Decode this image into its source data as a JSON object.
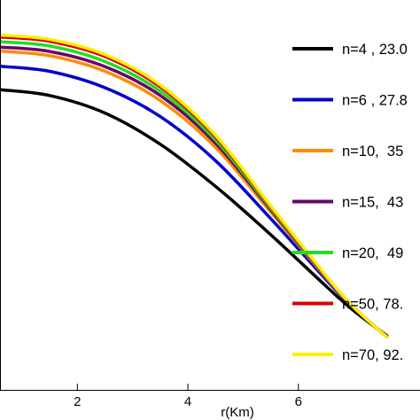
{
  "chart_data": {
    "type": "line",
    "title": "",
    "xlabel": "r(Km)",
    "ylabel": "",
    "xlim": [
      0.6,
      8.2
    ],
    "ylim": [
      0,
      1
    ],
    "grid": false,
    "legend_position": "right",
    "x_ticks": [
      {
        "value": 2,
        "label": "2"
      },
      {
        "value": 4,
        "label": "4"
      },
      {
        "value": 6,
        "label": "6"
      }
    ],
    "series": [
      {
        "name": "n=4 , 23.0",
        "color": "#000000",
        "x": [
          0.6,
          1.5,
          2.5,
          3.5,
          4.5,
          5.5,
          6.5,
          7.0,
          7.6
        ],
        "y": [
          0.77,
          0.755,
          0.71,
          0.63,
          0.522,
          0.398,
          0.266,
          0.203,
          0.139
        ]
      },
      {
        "name": "n=6 , 27.8",
        "color": "#0000cc",
        "x": [
          0.6,
          1.5,
          2.5,
          3.5,
          4.5,
          5.5,
          6.5,
          7.0,
          7.6
        ],
        "y": [
          0.83,
          0.817,
          0.775,
          0.701,
          0.588,
          0.439,
          0.283,
          0.21,
          0.137
        ]
      },
      {
        "name": "n=10,  35",
        "color": "#ff8c00",
        "x": [
          0.6,
          1.5,
          2.5,
          3.5,
          4.5,
          5.5,
          6.5,
          7.0,
          7.6
        ],
        "y": [
          0.869,
          0.857,
          0.817,
          0.742,
          0.622,
          0.456,
          0.288,
          0.211,
          0.136
        ]
      },
      {
        "name": "n=15,  43",
        "color": "#6b006b",
        "x": [
          0.6,
          1.5,
          2.5,
          3.5,
          4.5,
          5.5,
          6.5,
          7.0,
          7.6
        ],
        "y": [
          0.879,
          0.868,
          0.829,
          0.755,
          0.633,
          0.462,
          0.29,
          0.211,
          0.136
        ]
      },
      {
        "name": "n=20,  49",
        "color": "#22dd22",
        "x": [
          0.6,
          1.5,
          2.5,
          3.5,
          4.5,
          5.5,
          6.5,
          7.0,
          7.6
        ],
        "y": [
          0.893,
          0.882,
          0.842,
          0.766,
          0.641,
          0.466,
          0.291,
          0.212,
          0.136
        ]
      },
      {
        "name": "n=50, 78.",
        "color": "#dd0000",
        "x": [
          0.6,
          1.5,
          2.5,
          3.5,
          4.5,
          5.5,
          6.5,
          7.0,
          7.6
        ],
        "y": [
          0.905,
          0.894,
          0.855,
          0.777,
          0.649,
          0.47,
          0.292,
          0.212,
          0.136
        ]
      },
      {
        "name": "n=70, 92.",
        "color": "#ffee00",
        "x": [
          0.6,
          1.5,
          2.5,
          3.5,
          4.5,
          5.5,
          6.5,
          7.0,
          7.6
        ],
        "y": [
          0.91,
          0.899,
          0.86,
          0.782,
          0.653,
          0.472,
          0.293,
          0.212,
          0.136
        ]
      }
    ]
  }
}
